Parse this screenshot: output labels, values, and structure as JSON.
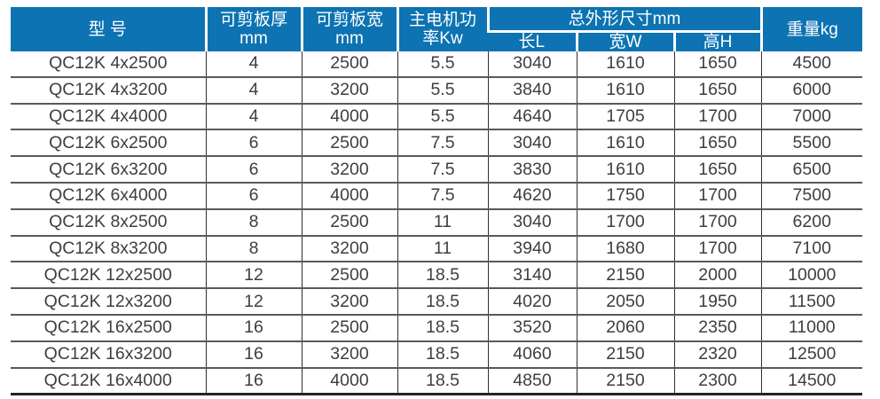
{
  "colors": {
    "header_bg": "#0d73b2",
    "header_text": "#ffffff",
    "body_text": "#3e3e40",
    "row_line": "#59595c",
    "column_line": "#303032"
  },
  "table": {
    "headers": {
      "model": "型 号",
      "thickness_line1": "可剪板厚",
      "thickness_line2": "mm",
      "width_line1": "可剪板宽",
      "width_line2": "mm",
      "power_line1": "主电机功",
      "power_line2": "率Kw",
      "dims_group": "总外形尺寸mm",
      "dim_length": "长L",
      "dim_width": "宽W",
      "dim_height": "高H",
      "weight": "重量kg"
    },
    "rows": [
      [
        "QC12K 4x2500",
        "4",
        "2500",
        "5.5",
        "3040",
        "1610",
        "1650",
        "4500"
      ],
      [
        "QC12K 4x3200",
        "4",
        "3200",
        "5.5",
        "3840",
        "1610",
        "1650",
        "6000"
      ],
      [
        "QC12K 4x4000",
        "4",
        "4000",
        "5.5",
        "4640",
        "1705",
        "1700",
        "7000"
      ],
      [
        "QC12K 6x2500",
        "6",
        "2500",
        "7.5",
        "3040",
        "1610",
        "1650",
        "5500"
      ],
      [
        "QC12K 6x3200",
        "6",
        "3200",
        "7.5",
        "3830",
        "1610",
        "1650",
        "6500"
      ],
      [
        "QC12K 6x4000",
        "6",
        "4000",
        "7.5",
        "4620",
        "1750",
        "1700",
        "7500"
      ],
      [
        "QC12K 8x2500",
        "8",
        "2500",
        "11",
        "3040",
        "1700",
        "1700",
        "6200"
      ],
      [
        "QC12K 8x3200",
        "8",
        "3200",
        "11",
        "3940",
        "1680",
        "1700",
        "7100"
      ],
      [
        "QC12K 12x2500",
        "12",
        "2500",
        "18.5",
        "3140",
        "2150",
        "2000",
        "10000"
      ],
      [
        "QC12K 12x3200",
        "12",
        "3200",
        "18.5",
        "4020",
        "2050",
        "1950",
        "11500"
      ],
      [
        "QC12K 16x2500",
        "16",
        "2500",
        "18.5",
        "3520",
        "2060",
        "2350",
        "11000"
      ],
      [
        "QC12K 16x3200",
        "16",
        "3200",
        "18.5",
        "4060",
        "2150",
        "2320",
        "12500"
      ],
      [
        "QC12K 16x4000",
        "16",
        "4000",
        "18.5",
        "4850",
        "2150",
        "2300",
        "14500"
      ]
    ]
  }
}
